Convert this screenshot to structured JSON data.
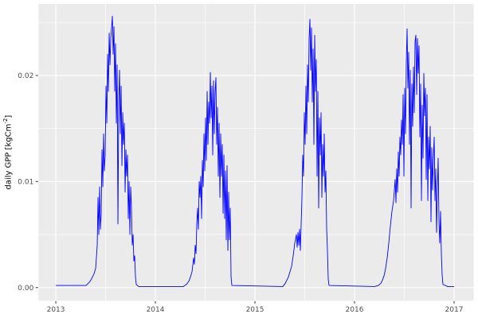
{
  "figure": {
    "background": "#FFFFFF",
    "panel_background": "#EBEBEB",
    "grid_color": "#FFFFFF",
    "tick_mark_color": "#333333",
    "tick_label_color": "#4D4D4D",
    "axis_title_color": "#000000",
    "line_color": "#0000FF"
  },
  "y_axis": {
    "title_prefix": "daily GPP [kgCm",
    "title_sup": "-2",
    "title_suffix": "]"
  },
  "chart_data": {
    "type": "line",
    "title": "",
    "xlabel": "",
    "ylabel": "daily GPP [kgCm^-2]",
    "grid": true,
    "legend": false,
    "x_range": [
      2012.826,
      2017.196
    ],
    "y_range": [
      -0.00124,
      0.02674
    ],
    "x_major_ticks": [
      2013,
      2014,
      2015,
      2016,
      2017
    ],
    "x_minor_ticks": [
      2013.5,
      2014.5,
      2015.5,
      2016.5
    ],
    "y_major_ticks": [
      0.0,
      0.01,
      0.02
    ],
    "y_minor_ticks": [
      0.005,
      0.015,
      0.025
    ],
    "x_tick_labels": [
      "2013",
      "2014",
      "2015",
      "2016",
      "2017"
    ],
    "y_tick_labels": [
      "0.00",
      "0.01",
      "0.02"
    ],
    "series": [
      {
        "name": "daily GPP",
        "color": "#0000FF",
        "points": [
          [
            2013.0,
            0.0002
          ],
          [
            2013.24,
            0.0002
          ],
          [
            2013.304,
            0.0002
          ],
          [
            2013.336,
            0.0005
          ],
          [
            2013.352,
            0.0007
          ],
          [
            2013.368,
            0.001
          ],
          [
            2013.384,
            0.0013
          ],
          [
            2013.4,
            0.0018
          ],
          [
            2013.416,
            0.004
          ],
          [
            2013.424,
            0.0085
          ],
          [
            2013.432,
            0.005
          ],
          [
            2013.44,
            0.0095
          ],
          [
            2013.448,
            0.0055
          ],
          [
            2013.456,
            0.007
          ],
          [
            2013.464,
            0.013
          ],
          [
            2013.472,
            0.0095
          ],
          [
            2013.48,
            0.0145
          ],
          [
            2013.488,
            0.011
          ],
          [
            2013.496,
            0.0125
          ],
          [
            2013.504,
            0.019
          ],
          [
            2013.512,
            0.0155
          ],
          [
            2013.52,
            0.022
          ],
          [
            2013.528,
            0.0185
          ],
          [
            2013.536,
            0.024
          ],
          [
            2013.544,
            0.021
          ],
          [
            2013.552,
            0.0235
          ],
          [
            2013.56,
            0.0245
          ],
          [
            2013.568,
            0.0256
          ],
          [
            2013.576,
            0.022
          ],
          [
            2013.584,
            0.0246
          ],
          [
            2013.592,
            0.0185
          ],
          [
            2013.6,
            0.023
          ],
          [
            2013.608,
            0.0155
          ],
          [
            2013.616,
            0.021
          ],
          [
            2013.624,
            0.006
          ],
          [
            2013.632,
            0.0175
          ],
          [
            2013.64,
            0.0205
          ],
          [
            2013.648,
            0.0145
          ],
          [
            2013.656,
            0.019
          ],
          [
            2013.664,
            0.0115
          ],
          [
            2013.672,
            0.0165
          ],
          [
            2013.68,
            0.0135
          ],
          [
            2013.688,
            0.0155
          ],
          [
            2013.696,
            0.009
          ],
          [
            2013.704,
            0.013
          ],
          [
            2013.712,
            0.0105
          ],
          [
            2013.72,
            0.0125
          ],
          [
            2013.728,
            0.0065
          ],
          [
            2013.736,
            0.01
          ],
          [
            2013.744,
            0.005
          ],
          [
            2013.752,
            0.0095
          ],
          [
            2013.76,
            0.0075
          ],
          [
            2013.768,
            0.004
          ],
          [
            2013.776,
            0.005
          ],
          [
            2013.784,
            0.0025
          ],
          [
            2013.792,
            0.003
          ],
          [
            2013.8,
            0.001
          ],
          [
            2013.808,
            0.0003
          ],
          [
            2013.832,
            0.0001
          ],
          [
            2014.28,
            0.0001
          ],
          [
            2014.312,
            0.0003
          ],
          [
            2014.336,
            0.0006
          ],
          [
            2014.352,
            0.001
          ],
          [
            2014.368,
            0.0015
          ],
          [
            2014.384,
            0.0028
          ],
          [
            2014.392,
            0.0022
          ],
          [
            2014.4,
            0.004
          ],
          [
            2014.408,
            0.0032
          ],
          [
            2014.416,
            0.006
          ],
          [
            2014.424,
            0.0075
          ],
          [
            2014.432,
            0.0055
          ],
          [
            2014.44,
            0.01
          ],
          [
            2014.448,
            0.0085
          ],
          [
            2014.456,
            0.0105
          ],
          [
            2014.464,
            0.0065
          ],
          [
            2014.472,
            0.012
          ],
          [
            2014.48,
            0.0095
          ],
          [
            2014.488,
            0.0145
          ],
          [
            2014.496,
            0.011
          ],
          [
            2014.504,
            0.016
          ],
          [
            2014.512,
            0.012
          ],
          [
            2014.52,
            0.0185
          ],
          [
            2014.528,
            0.0135
          ],
          [
            2014.536,
            0.0175
          ],
          [
            2014.544,
            0.0155
          ],
          [
            2014.552,
            0.0203
          ],
          [
            2014.56,
            0.016
          ],
          [
            2014.568,
            0.019
          ],
          [
            2014.576,
            0.0125
          ],
          [
            2014.584,
            0.0195
          ],
          [
            2014.592,
            0.0145
          ],
          [
            2014.6,
            0.0185
          ],
          [
            2014.608,
            0.0198
          ],
          [
            2014.616,
            0.0135
          ],
          [
            2014.624,
            0.017
          ],
          [
            2014.632,
            0.0105
          ],
          [
            2014.64,
            0.0155
          ],
          [
            2014.648,
            0.0085
          ],
          [
            2014.656,
            0.0145
          ],
          [
            2014.664,
            0.0105
          ],
          [
            2014.672,
            0.0135
          ],
          [
            2014.68,
            0.007
          ],
          [
            2014.688,
            0.0125
          ],
          [
            2014.696,
            0.0065
          ],
          [
            2014.704,
            0.011
          ],
          [
            2014.712,
            0.0045
          ],
          [
            2014.72,
            0.0115
          ],
          [
            2014.728,
            0.0035
          ],
          [
            2014.736,
            0.009
          ],
          [
            2014.744,
            0.0045
          ],
          [
            2014.752,
            0.0075
          ],
          [
            2014.76,
            0.001
          ],
          [
            2014.768,
            0.0002
          ],
          [
            2015.28,
            0.0001
          ],
          [
            2015.304,
            0.0004
          ],
          [
            2015.32,
            0.0007
          ],
          [
            2015.336,
            0.001
          ],
          [
            2015.352,
            0.0015
          ],
          [
            2015.368,
            0.002
          ],
          [
            2015.384,
            0.003
          ],
          [
            2015.4,
            0.0042
          ],
          [
            2015.416,
            0.005
          ],
          [
            2015.424,
            0.0038
          ],
          [
            2015.432,
            0.0052
          ],
          [
            2015.44,
            0.004
          ],
          [
            2015.448,
            0.0055
          ],
          [
            2015.456,
            0.0035
          ],
          [
            2015.464,
            0.006
          ],
          [
            2015.472,
            0.0085
          ],
          [
            2015.48,
            0.0125
          ],
          [
            2015.488,
            0.0105
          ],
          [
            2015.496,
            0.0165
          ],
          [
            2015.504,
            0.0135
          ],
          [
            2015.512,
            0.019
          ],
          [
            2015.52,
            0.0145
          ],
          [
            2015.528,
            0.021
          ],
          [
            2015.536,
            0.0175
          ],
          [
            2015.544,
            0.0235
          ],
          [
            2015.552,
            0.0253
          ],
          [
            2015.56,
            0.0205
          ],
          [
            2015.568,
            0.0245
          ],
          [
            2015.576,
            0.0175
          ],
          [
            2015.584,
            0.0225
          ],
          [
            2015.592,
            0.0135
          ],
          [
            2015.6,
            0.0238
          ],
          [
            2015.608,
            0.0185
          ],
          [
            2015.616,
            0.0215
          ],
          [
            2015.624,
            0.0105
          ],
          [
            2015.632,
            0.0185
          ],
          [
            2015.64,
            0.0075
          ],
          [
            2015.648,
            0.016
          ],
          [
            2015.656,
            0.0125
          ],
          [
            2015.664,
            0.0165
          ],
          [
            2015.672,
            0.0085
          ],
          [
            2015.68,
            0.0135
          ],
          [
            2015.688,
            0.0105
          ],
          [
            2015.696,
            0.0145
          ],
          [
            2015.704,
            0.009
          ],
          [
            2015.712,
            0.011
          ],
          [
            2015.72,
            0.0055
          ],
          [
            2015.728,
            0.0035
          ],
          [
            2015.736,
            0.0008
          ],
          [
            2015.744,
            0.0002
          ],
          [
            2016.2,
            0.0001
          ],
          [
            2016.24,
            0.0002
          ],
          [
            2016.264,
            0.0004
          ],
          [
            2016.28,
            0.0007
          ],
          [
            2016.296,
            0.0011
          ],
          [
            2016.312,
            0.0018
          ],
          [
            2016.328,
            0.0028
          ],
          [
            2016.344,
            0.0042
          ],
          [
            2016.36,
            0.0058
          ],
          [
            2016.376,
            0.0072
          ],
          [
            2016.392,
            0.0082
          ],
          [
            2016.408,
            0.0102
          ],
          [
            2016.416,
            0.008
          ],
          [
            2016.424,
            0.0112
          ],
          [
            2016.432,
            0.009
          ],
          [
            2016.44,
            0.0128
          ],
          [
            2016.448,
            0.0105
          ],
          [
            2016.456,
            0.0142
          ],
          [
            2016.464,
            0.0125
          ],
          [
            2016.472,
            0.0158
          ],
          [
            2016.48,
            0.0135
          ],
          [
            2016.488,
            0.0182
          ],
          [
            2016.496,
            0.0105
          ],
          [
            2016.504,
            0.0188
          ],
          [
            2016.512,
            0.0145
          ],
          [
            2016.52,
            0.0212
          ],
          [
            2016.528,
            0.0244
          ],
          [
            2016.536,
            0.0188
          ],
          [
            2016.544,
            0.0222
          ],
          [
            2016.552,
            0.0135
          ],
          [
            2016.56,
            0.0205
          ],
          [
            2016.568,
            0.0075
          ],
          [
            2016.576,
            0.0192
          ],
          [
            2016.584,
            0.0152
          ],
          [
            2016.592,
            0.0208
          ],
          [
            2016.6,
            0.0165
          ],
          [
            2016.608,
            0.0232
          ],
          [
            2016.616,
            0.0238
          ],
          [
            2016.624,
            0.0182
          ],
          [
            2016.632,
            0.0235
          ],
          [
            2016.64,
            0.0202
          ],
          [
            2016.648,
            0.0228
          ],
          [
            2016.656,
            0.0142
          ],
          [
            2016.664,
            0.0192
          ],
          [
            2016.672,
            0.0082
          ],
          [
            2016.68,
            0.0172
          ],
          [
            2016.688,
            0.0122
          ],
          [
            2016.696,
            0.0202
          ],
          [
            2016.704,
            0.0162
          ],
          [
            2016.712,
            0.0188
          ],
          [
            2016.72,
            0.0102
          ],
          [
            2016.728,
            0.0182
          ],
          [
            2016.736,
            0.0082
          ],
          [
            2016.744,
            0.0142
          ],
          [
            2016.752,
            0.0112
          ],
          [
            2016.76,
            0.0152
          ],
          [
            2016.768,
            0.0062
          ],
          [
            2016.776,
            0.0132
          ],
          [
            2016.784,
            0.0092
          ],
          [
            2016.792,
            0.0122
          ],
          [
            2016.8,
            0.0142
          ],
          [
            2016.808,
            0.0082
          ],
          [
            2016.816,
            0.0112
          ],
          [
            2016.824,
            0.0052
          ],
          [
            2016.832,
            0.0092
          ],
          [
            2016.84,
            0.0122
          ],
          [
            2016.848,
            0.0062
          ],
          [
            2016.856,
            0.0042
          ],
          [
            2016.864,
            0.0072
          ],
          [
            2016.872,
            0.0032
          ],
          [
            2016.88,
            0.0012
          ],
          [
            2016.888,
            0.0003
          ],
          [
            2016.936,
            0.0001
          ],
          [
            2017.0,
            0.0001
          ]
        ]
      }
    ]
  }
}
